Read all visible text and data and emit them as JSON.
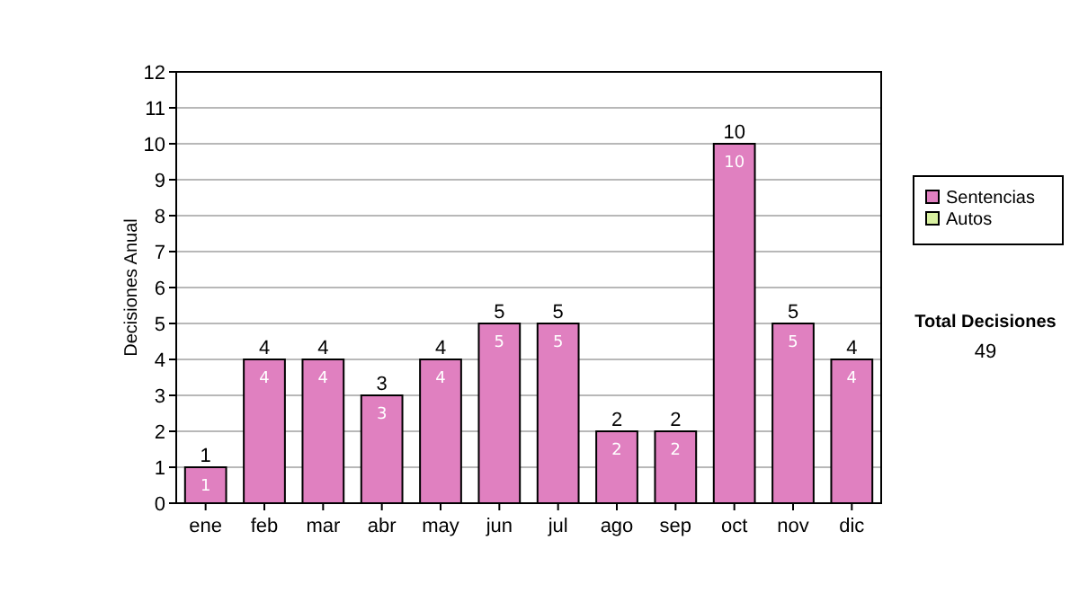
{
  "chart_data": {
    "type": "bar",
    "ylabel": "Decisiones Anual",
    "categories": [
      "ene",
      "feb",
      "mar",
      "abr",
      "may",
      "jun",
      "jul",
      "ago",
      "sep",
      "oct",
      "nov",
      "dic"
    ],
    "stacked": true,
    "series": [
      {
        "name": "Sentencias",
        "color": "#e080c0",
        "values": [
          1,
          4,
          4,
          3,
          4,
          5,
          5,
          2,
          2,
          10,
          5,
          4
        ],
        "value_labels": [
          "1",
          "4",
          "4",
          "3",
          "4",
          "5",
          "5",
          "2",
          "2",
          "10",
          "5",
          "4"
        ]
      },
      {
        "name": "Autos",
        "color": "#d8f0a0",
        "values": [
          0,
          0,
          0,
          0,
          0,
          0,
          0,
          0,
          0,
          0,
          0,
          0
        ],
        "value_labels": [
          null,
          null,
          null,
          null,
          null,
          null,
          null,
          null,
          null,
          null,
          null,
          null
        ]
      }
    ],
    "totals": [
      "1",
      "4",
      "4",
      "3",
      "4",
      "5",
      "5",
      "2",
      "2",
      "10",
      "5",
      "4"
    ],
    "ylim": [
      0,
      12
    ],
    "yticks": [
      0,
      1,
      2,
      3,
      4,
      5,
      6,
      7,
      8,
      9,
      10,
      11,
      12
    ],
    "grid": "y",
    "legend": "right",
    "annotations": [
      "Total Decisiones",
      "49"
    ]
  }
}
